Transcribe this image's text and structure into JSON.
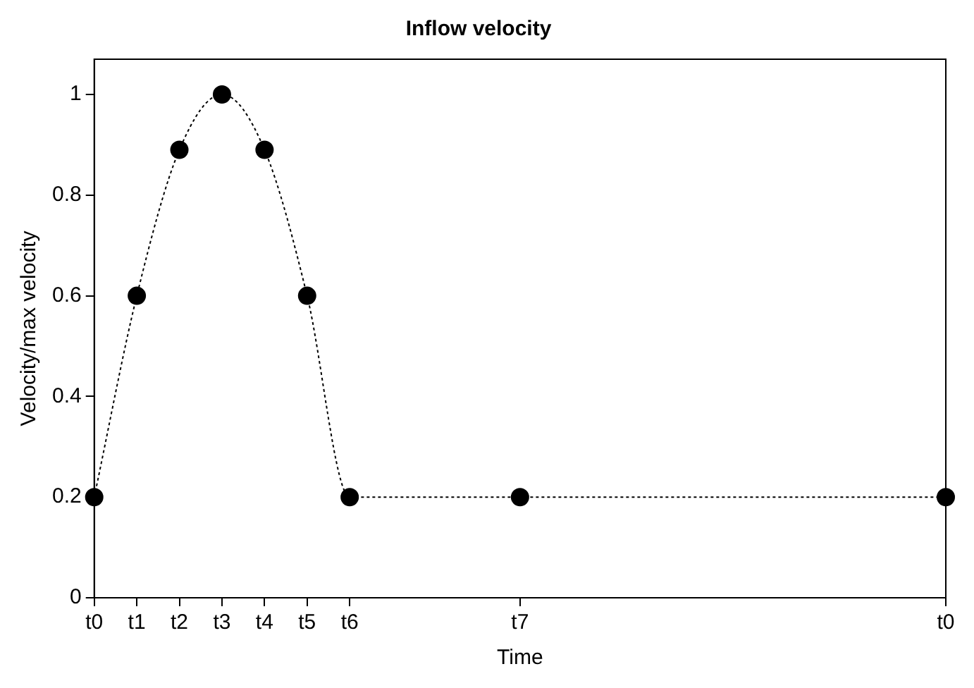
{
  "chart_data": {
    "type": "line",
    "title": "Inflow velocity",
    "xlabel": "Time",
    "ylabel": "Velocity/max velocity",
    "categories": [
      "t0",
      "t1",
      "t2",
      "t3",
      "t4",
      "t5",
      "t6",
      null,
      null,
      null,
      "t7",
      null,
      null,
      null,
      null,
      null,
      null,
      null,
      null,
      null,
      "t0"
    ],
    "series": [
      {
        "color": "#000000",
        "values": [
          0.2,
          0.6,
          0.89,
          1,
          0.89,
          0.6,
          0.2,
          null,
          null,
          null,
          0.2,
          null,
          null,
          null,
          null,
          null,
          null,
          null,
          null,
          null,
          0.2
        ]
      }
    ],
    "ylim": [
      0,
      1.07
    ],
    "yticks": [
      0,
      0.2,
      0.4,
      0.6,
      0.8,
      1
    ],
    "grid": false,
    "legend": false,
    "marker": "circle",
    "line_style": "dotted"
  }
}
